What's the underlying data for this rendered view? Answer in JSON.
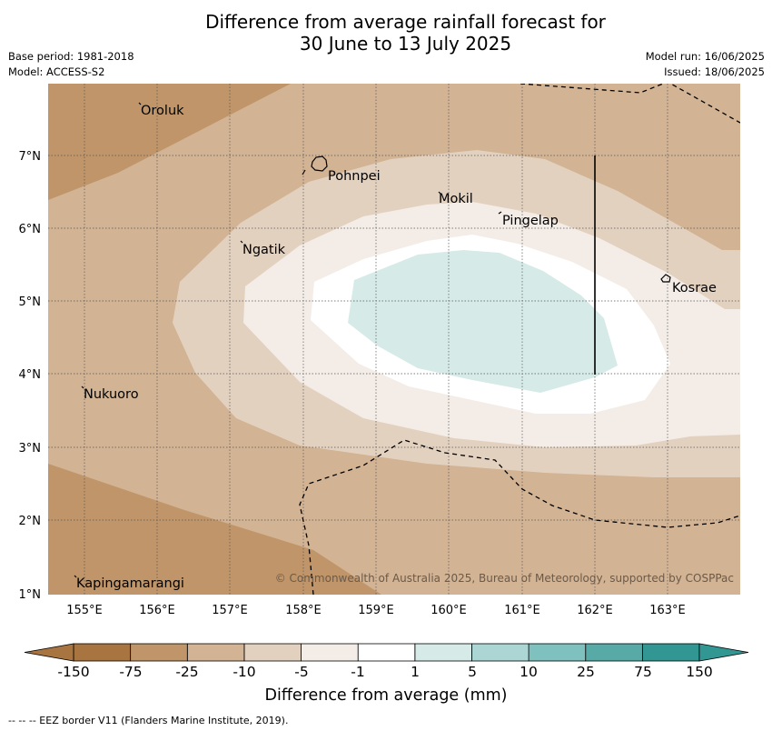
{
  "header": {
    "title_line1": "Difference from average rainfall forecast for",
    "title_line2": "30 June to 13 July 2025",
    "base_period": "Base period: 1981-2018",
    "model": "Model: ACCESS-S2",
    "model_run": "Model run: 16/06/2025",
    "issued": "Issued: 18/06/2025"
  },
  "map": {
    "lon_ticks": [
      "155°E",
      "156°E",
      "157°E",
      "158°E",
      "159°E",
      "160°E",
      "161°E",
      "162°E",
      "163°E"
    ],
    "lat_ticks": [
      "1°N",
      "2°N",
      "3°N",
      "4°N",
      "5°N",
      "6°N",
      "7°N"
    ],
    "places": [
      "Oroluk",
      "Pohnpei",
      "Mokil",
      "Pingelap",
      "Ngatik",
      "Kosrae",
      "Nukuoro",
      "Kapingamarangi"
    ],
    "copyright": "© Commonwealth of Australia 2025, Bureau of Meteorology, supported by COSPPac"
  },
  "colorbar": {
    "labels": [
      "-150",
      "-75",
      "-25",
      "-10",
      "-5",
      "-1",
      "1",
      "5",
      "10",
      "25",
      "75",
      "150"
    ],
    "colors": [
      "#a87540",
      "#bf9569",
      "#d2b394",
      "#e3d1c0",
      "#f4ede7",
      "#ffffff",
      "#d6eae8",
      "#acd6d4",
      "#7fc1be",
      "#58aaa7",
      "#329693"
    ],
    "title": "Difference from average (mm)"
  },
  "footer": {
    "eez_legend": "--  --  -- EEZ border V11 (Flanders Marine Institute, 2019)."
  }
}
